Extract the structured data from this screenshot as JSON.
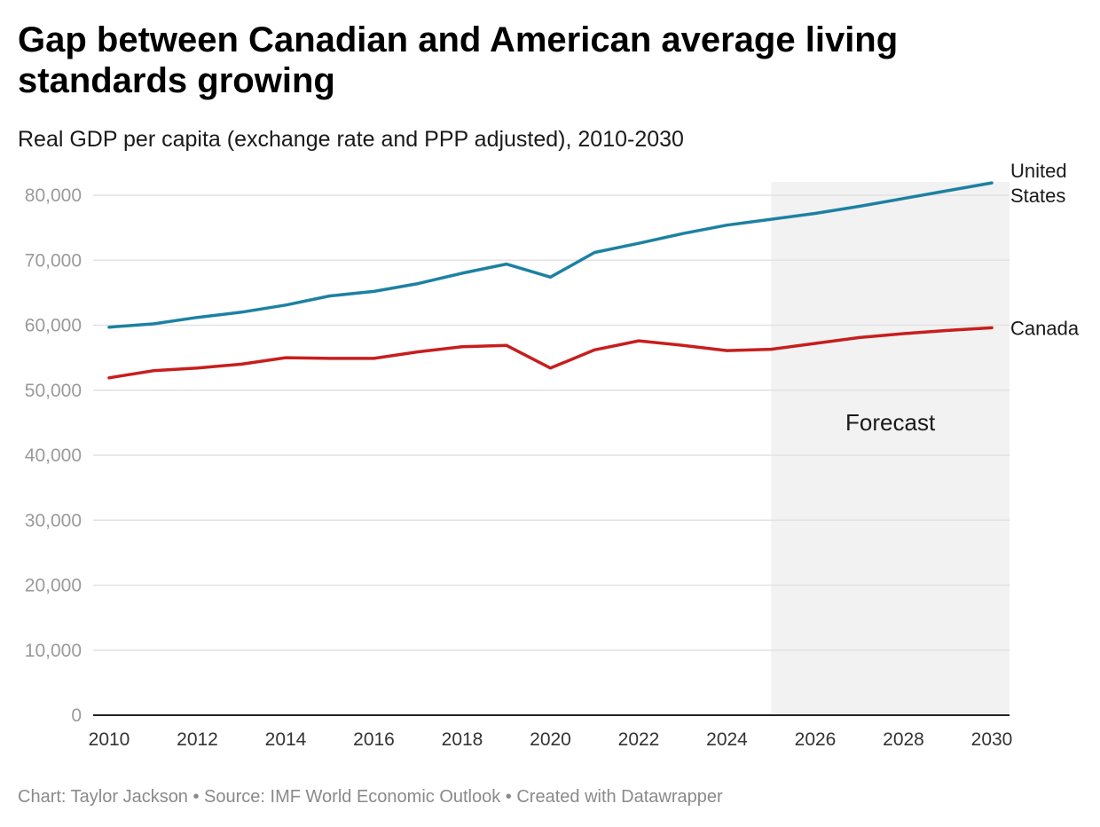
{
  "header": {
    "title": "Gap between Canadian and American average living standards growing",
    "subtitle": "Real GDP per capita (exchange rate and PPP adjusted), 2010-2030"
  },
  "footer": {
    "credit": "Chart: Taylor Jackson • Source: IMF World Economic Outlook • Created with Datawrapper"
  },
  "chart_data": {
    "type": "line",
    "title": "Gap between Canadian and American average living standards growing",
    "subtitle": "Real GDP per capita (exchange rate and PPP adjusted), 2010-2030",
    "xlabel": "",
    "ylabel": "",
    "x": [
      2010,
      2011,
      2012,
      2013,
      2014,
      2015,
      2016,
      2017,
      2018,
      2019,
      2020,
      2021,
      2022,
      2023,
      2024,
      2025,
      2026,
      2027,
      2028,
      2029,
      2030
    ],
    "xlim": [
      2010,
      2030
    ],
    "ylim": [
      0,
      80000
    ],
    "x_ticks": [
      "2010",
      "2012",
      "2014",
      "2016",
      "2018",
      "2020",
      "2022",
      "2024",
      "2026",
      "2028",
      "2030"
    ],
    "y_ticks": [
      "0",
      "10,000",
      "20,000",
      "30,000",
      "40,000",
      "50,000",
      "60,000",
      "70,000",
      "80,000"
    ],
    "y_tick_values": [
      0,
      10000,
      20000,
      30000,
      40000,
      50000,
      60000,
      70000,
      80000
    ],
    "grid": true,
    "series": [
      {
        "name": "United States",
        "label_lines": [
          "United",
          "States"
        ],
        "color": "#1d81a2",
        "values": [
          59700,
          60200,
          61200,
          62000,
          63100,
          64500,
          65200,
          66400,
          68000,
          69400,
          67400,
          71200,
          72600,
          74100,
          75400,
          76300,
          77200,
          78300,
          79500,
          80700,
          81900
        ]
      },
      {
        "name": "Canada",
        "label_lines": [
          "Canada"
        ],
        "color": "#c71e1d",
        "values": [
          51900,
          53000,
          53400,
          54000,
          55000,
          54900,
          54900,
          55900,
          56700,
          56900,
          53400,
          56200,
          57600,
          56900,
          56100,
          56300,
          57200,
          58100,
          58700,
          59200,
          59600
        ]
      }
    ],
    "annotations": [
      {
        "type": "shaded-region",
        "x_from": 2025,
        "x_to": 2030,
        "label": "Forecast",
        "color": "#f2f2f2"
      }
    ]
  }
}
